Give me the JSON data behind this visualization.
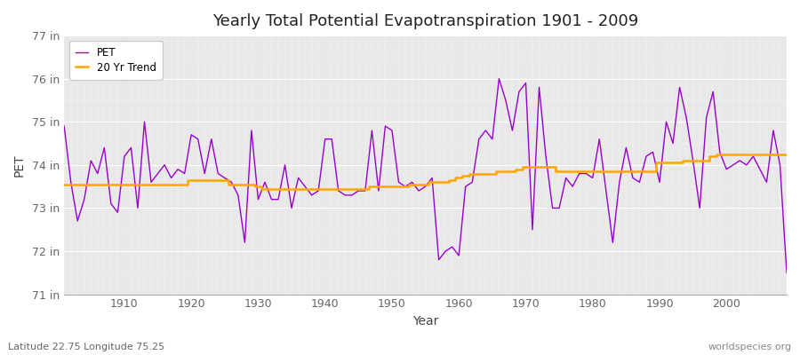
{
  "title": "Yearly Total Potential Evapotranspiration 1901 - 2009",
  "xlabel": "Year",
  "ylabel": "PET",
  "subtitle_left": "Latitude 22.75 Longitude 75.25",
  "subtitle_right": "worldspecies.org",
  "pet_color": "#9900cc",
  "trend_color": "#ffa500",
  "background_color": "#ffffff",
  "plot_bg_color": "#e8e8e8",
  "ylim": [
    71,
    77
  ],
  "xlim": [
    1901,
    2009
  ],
  "xticks": [
    1910,
    1920,
    1930,
    1940,
    1950,
    1960,
    1970,
    1980,
    1990,
    2000
  ],
  "yticks": [
    71,
    72,
    73,
    74,
    75,
    76,
    77
  ],
  "years": [
    1901,
    1902,
    1903,
    1904,
    1905,
    1906,
    1907,
    1908,
    1909,
    1910,
    1911,
    1912,
    1913,
    1914,
    1915,
    1916,
    1917,
    1918,
    1919,
    1920,
    1921,
    1922,
    1923,
    1924,
    1925,
    1926,
    1927,
    1928,
    1929,
    1930,
    1931,
    1932,
    1933,
    1934,
    1935,
    1936,
    1937,
    1938,
    1939,
    1940,
    1941,
    1942,
    1943,
    1944,
    1945,
    1946,
    1947,
    1948,
    1949,
    1950,
    1951,
    1952,
    1953,
    1954,
    1955,
    1956,
    1957,
    1958,
    1959,
    1960,
    1961,
    1962,
    1963,
    1964,
    1965,
    1966,
    1967,
    1968,
    1969,
    1970,
    1971,
    1972,
    1973,
    1974,
    1975,
    1976,
    1977,
    1978,
    1979,
    1980,
    1981,
    1982,
    1983,
    1984,
    1985,
    1986,
    1987,
    1988,
    1989,
    1990,
    1991,
    1992,
    1993,
    1994,
    1995,
    1996,
    1997,
    1998,
    1999,
    2000,
    2001,
    2002,
    2003,
    2004,
    2005,
    2006,
    2007,
    2008,
    2009
  ],
  "pet_values": [
    74.9,
    73.6,
    72.7,
    73.2,
    74.1,
    73.8,
    74.4,
    73.1,
    72.9,
    74.2,
    74.4,
    73.0,
    75.0,
    73.6,
    73.8,
    74.0,
    73.7,
    73.9,
    73.8,
    74.7,
    74.6,
    73.8,
    74.6,
    73.8,
    73.7,
    73.6,
    73.3,
    72.2,
    74.8,
    73.2,
    73.6,
    73.2,
    73.2,
    74.0,
    73.0,
    73.7,
    73.5,
    73.3,
    73.4,
    74.6,
    74.6,
    73.4,
    73.3,
    73.3,
    73.4,
    73.4,
    74.8,
    73.4,
    74.9,
    74.8,
    73.6,
    73.5,
    73.6,
    73.4,
    73.5,
    73.7,
    71.8,
    72.0,
    72.1,
    71.9,
    73.5,
    73.6,
    74.6,
    74.8,
    74.6,
    76.0,
    75.5,
    74.8,
    75.7,
    75.9,
    72.5,
    75.8,
    74.2,
    73.0,
    73.0,
    73.7,
    73.5,
    73.8,
    73.8,
    73.7,
    74.6,
    73.4,
    72.2,
    73.6,
    74.4,
    73.7,
    73.6,
    74.2,
    74.3,
    73.6,
    75.0,
    74.5,
    75.8,
    75.1,
    74.1,
    73.0,
    75.1,
    75.7,
    74.3,
    73.9,
    74.0,
    74.1,
    74.0,
    74.2,
    73.9,
    73.6,
    74.8,
    74.0,
    71.5
  ],
  "trend_values": [
    73.55,
    73.55,
    73.55,
    73.55,
    73.55,
    73.55,
    73.55,
    73.55,
    73.55,
    73.55,
    73.55,
    73.55,
    73.55,
    73.55,
    73.55,
    73.55,
    73.55,
    73.55,
    73.55,
    73.65,
    73.65,
    73.65,
    73.65,
    73.65,
    73.65,
    73.55,
    73.55,
    73.55,
    73.55,
    73.5,
    73.45,
    73.45,
    73.45,
    73.45,
    73.45,
    73.45,
    73.45,
    73.45,
    73.45,
    73.45,
    73.45,
    73.45,
    73.45,
    73.45,
    73.45,
    73.45,
    73.5,
    73.5,
    73.5,
    73.5,
    73.5,
    73.5,
    73.55,
    73.55,
    73.55,
    73.6,
    73.6,
    73.6,
    73.65,
    73.7,
    73.75,
    73.8,
    73.8,
    73.8,
    73.8,
    73.85,
    73.85,
    73.85,
    73.9,
    73.95,
    73.95,
    73.95,
    73.95,
    73.95,
    73.85,
    73.85,
    73.85,
    73.85,
    73.85,
    73.85,
    73.85,
    73.85,
    73.85,
    73.85,
    73.85,
    73.85,
    73.85,
    73.85,
    73.85,
    74.05,
    74.05,
    74.05,
    74.05,
    74.1,
    74.1,
    74.1,
    74.1,
    74.2,
    74.25,
    74.25,
    74.25,
    74.25,
    74.25,
    74.25,
    74.25,
    74.25,
    74.25,
    74.25,
    74.25
  ]
}
